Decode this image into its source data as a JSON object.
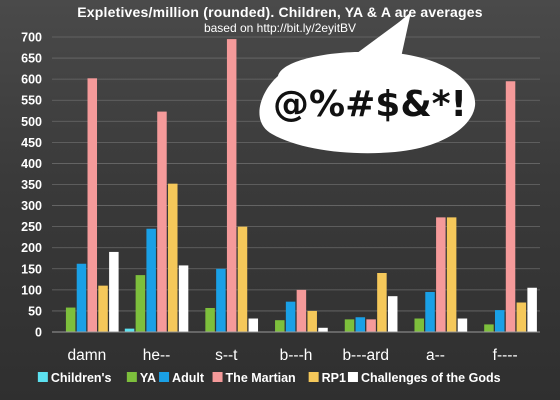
{
  "chart_data": {
    "type": "bar",
    "title": "Expletives/million (rounded). Children, YA & A are averages",
    "subtitle": "based on  http://bit.ly/2eyitBV",
    "callout_text": "@%#$&*!",
    "categories": [
      "damn",
      "he--",
      "s--t",
      "b---h",
      "b---ard",
      "a--",
      "f----"
    ],
    "ylim": [
      0,
      700
    ],
    "yticks": [
      0,
      50,
      100,
      150,
      200,
      250,
      300,
      350,
      400,
      450,
      500,
      550,
      600,
      650,
      700
    ],
    "grid": true,
    "legend_position": "bottom",
    "series": [
      {
        "name": "Children's",
        "color": "#5ce1f0",
        "values": [
          0,
          8,
          0,
          0,
          0,
          0,
          0
        ]
      },
      {
        "name": "YA",
        "color": "#7dbf3c",
        "values": [
          58,
          135,
          57,
          28,
          30,
          32,
          18
        ]
      },
      {
        "name": "Adult",
        "color": "#1aa0e6",
        "values": [
          162,
          245,
          150,
          72,
          35,
          95,
          52
        ]
      },
      {
        "name": "The Martian",
        "color": "#f59a9a",
        "values": [
          602,
          523,
          695,
          100,
          30,
          272,
          595
        ]
      },
      {
        "name": "RP1",
        "color": "#f5c85a",
        "values": [
          110,
          352,
          250,
          50,
          140,
          272,
          70
        ]
      },
      {
        "name": "Challenges of the Gods",
        "color": "#ffffff",
        "values": [
          190,
          158,
          32,
          10,
          85,
          32,
          105
        ]
      }
    ]
  }
}
